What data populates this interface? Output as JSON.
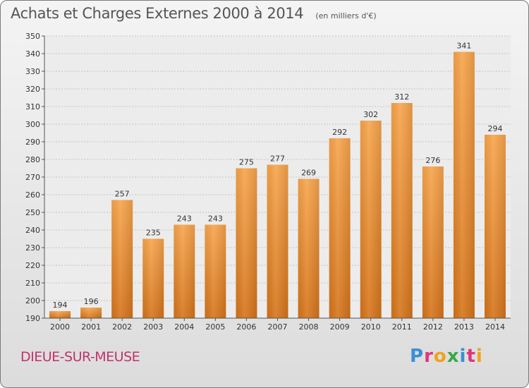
{
  "header": {
    "title": "Achats et Charges Externes 2000 à 2014",
    "subtitle": "(en milliers d'€)"
  },
  "commune": "DIEUE-SUR-MEUSE",
  "logo": {
    "letters": [
      "P",
      "r",
      "o",
      "x",
      "i",
      "t",
      "i"
    ],
    "colors": [
      "#3a8fd6",
      "#e0357c",
      "#f0a21c",
      "#3aa848",
      "#3a8fd6",
      "#e0357c",
      "#f0a21c"
    ]
  },
  "chart_data": {
    "type": "bar",
    "title": "Achats et Charges Externes 2000 à 2014",
    "subtitle": "(en milliers d'€)",
    "categories": [
      "2000",
      "2001",
      "2002",
      "2003",
      "2004",
      "2005",
      "2006",
      "2007",
      "2008",
      "2009",
      "2010",
      "2011",
      "2012",
      "2013",
      "2014"
    ],
    "values": [
      194,
      196,
      257,
      235,
      243,
      243,
      275,
      277,
      269,
      292,
      302,
      312,
      276,
      341,
      294
    ],
    "ylim": [
      190,
      350
    ],
    "yticks": [
      190,
      200,
      210,
      220,
      230,
      240,
      250,
      260,
      270,
      280,
      290,
      300,
      310,
      320,
      330,
      340,
      350
    ],
    "grid": true,
    "bar_color": "#f29a3a"
  }
}
